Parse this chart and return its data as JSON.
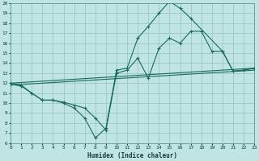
{
  "xlabel": "Humidex (Indice chaleur)",
  "background_color": "#c0e4e4",
  "grid_color": "#98c8c8",
  "line_color": "#1a6b5a",
  "xlim": [
    0,
    23
  ],
  "ylim": [
    6,
    20
  ],
  "xticks": [
    0,
    1,
    2,
    3,
    4,
    5,
    6,
    7,
    8,
    9,
    10,
    11,
    12,
    13,
    14,
    15,
    16,
    17,
    18,
    19,
    20,
    21,
    22,
    23
  ],
  "yticks": [
    6,
    7,
    8,
    9,
    10,
    11,
    12,
    13,
    14,
    15,
    16,
    17,
    18,
    19,
    20
  ],
  "curve1_x": [
    0,
    1,
    2,
    3,
    4,
    5,
    6,
    7,
    8,
    9,
    10,
    11,
    12,
    13,
    14,
    15,
    16,
    17,
    20,
    21,
    22,
    23
  ],
  "curve1_y": [
    12.0,
    11.8,
    11.0,
    10.3,
    10.3,
    10.0,
    9.5,
    8.5,
    6.5,
    7.5,
    13.3,
    13.5,
    16.5,
    17.7,
    19.0,
    20.2,
    19.5,
    18.5,
    15.2,
    13.2,
    13.3,
    13.5
  ],
  "curve2_x": [
    0,
    1,
    2,
    3,
    4,
    5,
    6,
    7,
    8,
    9,
    10,
    11,
    12,
    13,
    14,
    15,
    16,
    17,
    18,
    19,
    20,
    21,
    22,
    23
  ],
  "curve2_y": [
    11.9,
    11.7,
    11.0,
    10.3,
    10.3,
    10.1,
    9.8,
    9.5,
    8.5,
    7.3,
    13.0,
    13.3,
    14.5,
    12.5,
    15.5,
    16.5,
    16.0,
    17.2,
    17.2,
    15.2,
    15.2,
    13.2,
    13.3,
    13.5
  ],
  "line1_x": [
    0,
    23
  ],
  "line1_y": [
    12.0,
    13.5
  ],
  "line2_x": [
    0,
    23
  ],
  "line2_y": [
    11.8,
    13.3
  ]
}
